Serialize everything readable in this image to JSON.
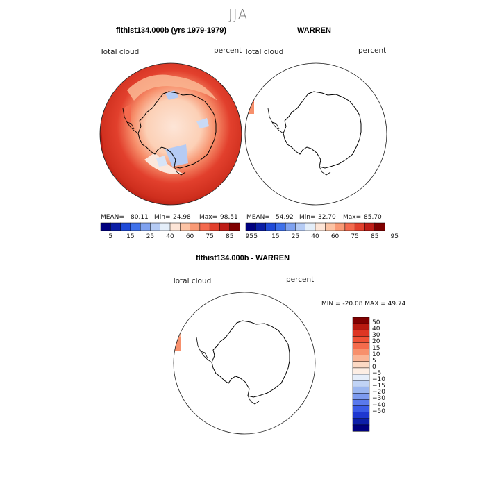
{
  "season": "JJA",
  "panels": [
    {
      "title": "flthist134.000b (yrs 1979-1979)",
      "variable": "Total cloud",
      "units": "percent",
      "stats": {
        "mean_label": "MEAN=",
        "mean": "80.11",
        "min_label": "Min=",
        "min": "24.98",
        "max_label": "Max=",
        "max": "98.51"
      }
    },
    {
      "title": "WARREN",
      "variable": "Total cloud",
      "units": "percent",
      "stats": {
        "mean_label": "MEAN=",
        "mean": "54.92",
        "min_label": "Min=",
        "min": "32.70",
        "max_label": "Max=",
        "max": "85.70"
      }
    },
    {
      "title": "flthist134.000b - WARREN",
      "variable": "Total cloud",
      "units": "percent",
      "minmax_text": "MIN = -20.08  MAX =  49.74"
    }
  ],
  "abs_colorbar": {
    "labels": [
      "5",
      "15",
      "25",
      "40",
      "60",
      "75",
      "85",
      "95"
    ],
    "colors": [
      "#00007f",
      "#0a1ea6",
      "#1f4ad8",
      "#3f71ea",
      "#7fa2f0",
      "#b5cbf4",
      "#e4eef9",
      "#fde5d7",
      "#fcc3a4",
      "#f99a76",
      "#f46a4e",
      "#e2402d",
      "#bf1d17",
      "#7f0000"
    ]
  },
  "diff_colorbar": {
    "labels": [
      "50",
      "40",
      "30",
      "20",
      "15",
      "10",
      "5",
      "0",
      "−5",
      "−10",
      "−15",
      "−20",
      "−30",
      "−40",
      "−50"
    ],
    "colors": [
      "#7f0000",
      "#b71a10",
      "#de3623",
      "#f05236",
      "#f46b4c",
      "#f7906c",
      "#fab596",
      "#fcd9c4",
      "#fdeee4",
      "#e6eefa",
      "#c0d3f5",
      "#9bb6ef",
      "#7d9bef",
      "#5a79ec",
      "#3b5be6",
      "#1e37d0",
      "#0d1fa8",
      "#00007f"
    ]
  },
  "icons": {
    "map_panels": [
      "antarctic-polar-map-model",
      "antarctic-polar-map-obs",
      "antarctic-polar-map-diff"
    ]
  }
}
